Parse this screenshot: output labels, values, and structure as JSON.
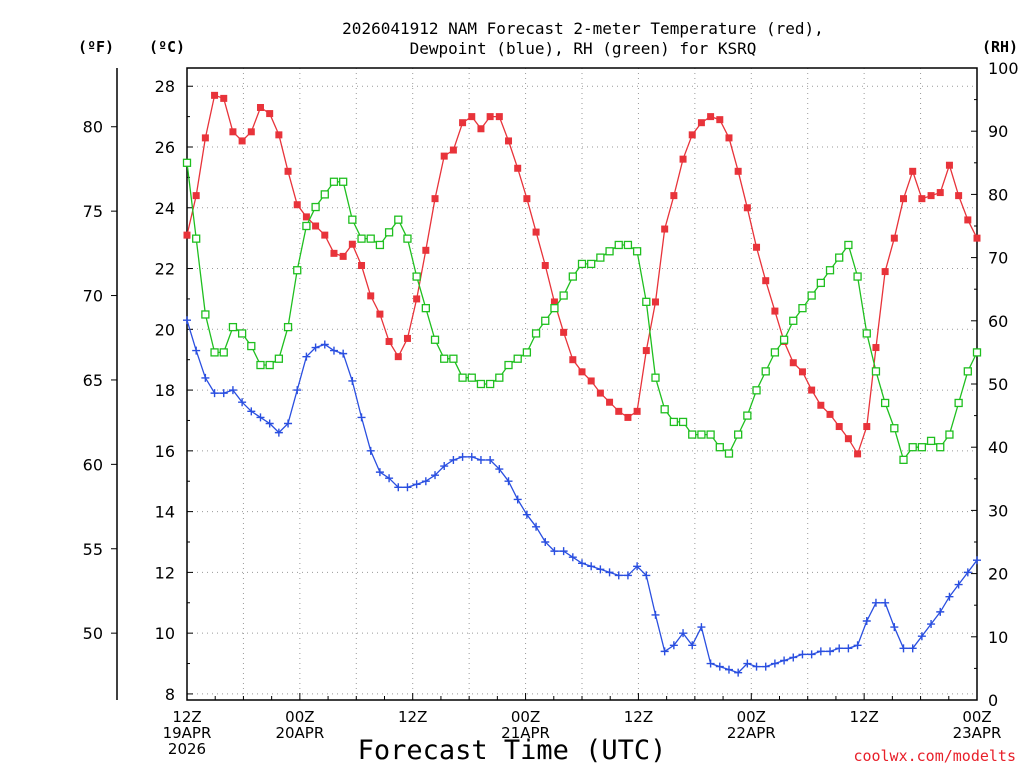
{
  "chart_data": {
    "type": "line",
    "title": "2026041912 NAM Forecast 2-meter Temperature (red),",
    "subtitle": "Dewpoint (blue), RH (green) for KSRQ",
    "xlabel": "Forecast Time (UTC)",
    "credit": "coolwx.com/modelts",
    "units": {
      "fahrenheit": "(ºF)",
      "celsius": "(ºC)",
      "rh": "(RH)"
    },
    "axes": {
      "celsius": {
        "range": [
          7.8,
          28.6
        ],
        "ticks": [
          "8",
          "10",
          "12",
          "14",
          "16",
          "18",
          "20",
          "22",
          "24",
          "26",
          "28"
        ]
      },
      "fahrenheit": {
        "ticks": [
          "50",
          "55",
          "60",
          "65",
          "70",
          "75",
          "80"
        ]
      },
      "rh": {
        "range": [
          0,
          100
        ],
        "ticks": [
          "0",
          "10",
          "20",
          "30",
          "40",
          "50",
          "60",
          "70",
          "80",
          "90",
          "100"
        ]
      },
      "hours": {
        "range": [
          0,
          84
        ]
      }
    },
    "x_ticks": [
      {
        "hour": 0,
        "lines": [
          "12Z",
          "19APR",
          "2026"
        ]
      },
      {
        "hour": 12,
        "lines": [
          "00Z",
          "20APR"
        ]
      },
      {
        "hour": 24,
        "lines": [
          "12Z"
        ]
      },
      {
        "hour": 36,
        "lines": [
          "00Z",
          "21APR"
        ]
      },
      {
        "hour": 48,
        "lines": [
          "12Z"
        ]
      },
      {
        "hour": 60,
        "lines": [
          "00Z",
          "22APR"
        ]
      },
      {
        "hour": 72,
        "lines": [
          "12Z"
        ]
      },
      {
        "hour": 84,
        "lines": [
          "00Z",
          "23APR"
        ]
      }
    ],
    "series": [
      {
        "name": "Temperature",
        "units": "C",
        "color": "#e8333a",
        "marker": "filled-square",
        "values": [
          23.1,
          24.4,
          26.3,
          27.7,
          27.6,
          26.5,
          26.2,
          26.5,
          27.3,
          27.1,
          26.4,
          25.2,
          24.1,
          23.7,
          23.4,
          23.1,
          22.5,
          22.4,
          22.8,
          22.1,
          21.1,
          20.5,
          19.6,
          19.1,
          19.7,
          21.0,
          22.6,
          24.3,
          25.7,
          25.9,
          26.8,
          27.0,
          26.6,
          27.0,
          27.0,
          26.2,
          25.3,
          24.3,
          23.2,
          22.1,
          20.9,
          19.9,
          19.0,
          18.6,
          18.3,
          17.9,
          17.6,
          17.3,
          17.1,
          17.3,
          19.3,
          20.9,
          23.3,
          24.4,
          25.6,
          26.4,
          26.8,
          27.0,
          26.9,
          26.3,
          25.2,
          24.0,
          22.7,
          21.6,
          20.6,
          19.6,
          18.9,
          18.6,
          18.0,
          17.5,
          17.2,
          16.8,
          16.4,
          15.9,
          16.8,
          19.4,
          21.9,
          23.0,
          24.3,
          25.2,
          24.3,
          24.4,
          24.5,
          25.4,
          24.4,
          23.6,
          23.0
        ]
      },
      {
        "name": "Dewpoint",
        "units": "C",
        "color": "#2a4fe0",
        "marker": "plus",
        "values": [
          20.3,
          19.3,
          18.4,
          17.9,
          17.9,
          18.0,
          17.6,
          17.3,
          17.1,
          16.9,
          16.6,
          16.9,
          18.0,
          19.1,
          19.4,
          19.5,
          19.3,
          19.2,
          18.3,
          17.1,
          16.0,
          15.3,
          15.1,
          14.8,
          14.8,
          14.9,
          15.0,
          15.2,
          15.5,
          15.7,
          15.8,
          15.8,
          15.7,
          15.7,
          15.4,
          15.0,
          14.4,
          13.9,
          13.5,
          13.0,
          12.7,
          12.7,
          12.5,
          12.3,
          12.2,
          12.1,
          12.0,
          11.9,
          11.9,
          12.2,
          11.9,
          10.6,
          9.4,
          9.6,
          10.0,
          9.6,
          10.2,
          9.0,
          8.9,
          8.8,
          8.7,
          9.0,
          8.9,
          8.9,
          9.0,
          9.1,
          9.2,
          9.3,
          9.3,
          9.4,
          9.4,
          9.5,
          9.5,
          9.6,
          10.4,
          11.0,
          11.0,
          10.2,
          9.5,
          9.5,
          9.9,
          10.3,
          10.7,
          11.2,
          11.6,
          12.0,
          12.4
        ]
      },
      {
        "name": "Relative Humidity",
        "units": "%",
        "color": "#1fbf1f",
        "marker": "open-square",
        "values": [
          85,
          73,
          61,
          55,
          55,
          59,
          58,
          56,
          53,
          53,
          54,
          59,
          68,
          75,
          78,
          80,
          82,
          82,
          76,
          73,
          73,
          72,
          74,
          76,
          73,
          67,
          62,
          57,
          54,
          54,
          51,
          51,
          50,
          50,
          51,
          53,
          54,
          55,
          58,
          60,
          62,
          64,
          67,
          69,
          69,
          70,
          71,
          72,
          72,
          71,
          63,
          51,
          46,
          44,
          44,
          42,
          42,
          42,
          40,
          39,
          42,
          45,
          49,
          52,
          55,
          57,
          60,
          62,
          64,
          66,
          68,
          70,
          72,
          67,
          58,
          52,
          47,
          43,
          38,
          40,
          40,
          41,
          40,
          42,
          47,
          52,
          55
        ]
      }
    ]
  }
}
